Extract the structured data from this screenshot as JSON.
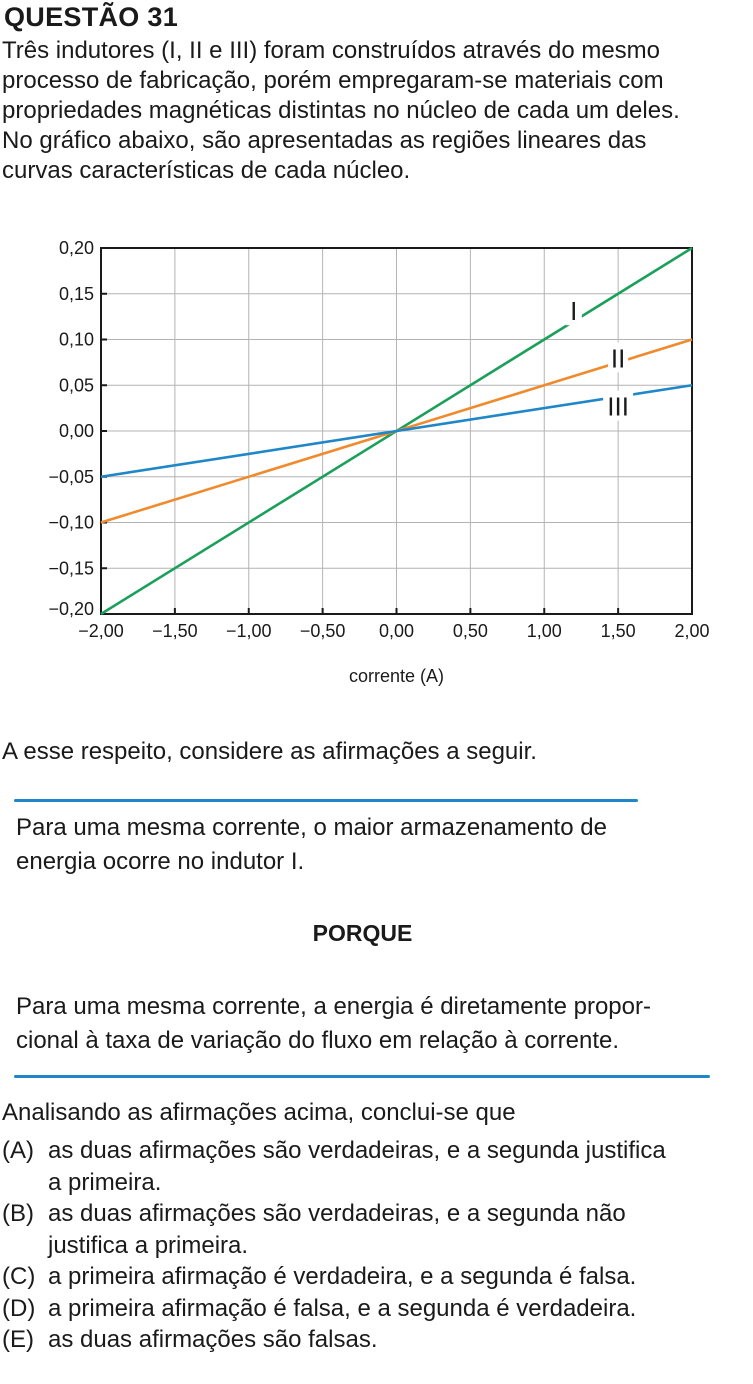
{
  "question": {
    "title": "QUESTÃO 31",
    "intro_lines": [
      "Três indutores (I, II e III) foram construídos através do mesmo",
      "processo de fabricação, porém empregaram-se materiais com",
      "propriedades magnéticas distintas no núcleo de cada um deles.",
      "No gráfico abaixo, são apresentadas as regiões lineares das",
      "curvas características de cada núcleo."
    ],
    "prompt": "A esse respeito, considere as afirmações a seguir.",
    "statement1_lines": [
      "Para uma mesma corrente, o maior armazenamento de",
      "energia ocorre no indutor I."
    ],
    "connector": "PORQUE",
    "statement2_lines": [
      "Para uma mesma corrente, a energia é diretamente propor-",
      "cional à taxa de variação do fluxo em relação à corrente."
    ],
    "conclusion": "Analisando as afirmações acima, conclui-se que",
    "options": [
      {
        "letter": "(A)",
        "lines": [
          "as duas afirmações são verdadeiras, e a segunda justifica",
          "a primeira."
        ]
      },
      {
        "letter": "(B)",
        "lines": [
          "as duas afirmações são verdadeiras, e a segunda não",
          "justifica a primeira."
        ]
      },
      {
        "letter": "(C)",
        "lines": [
          "a primeira afirmação é verdadeira, e a segunda é falsa."
        ]
      },
      {
        "letter": "(D)",
        "lines": [
          "a primeira afirmação é falsa, e a segunda é verdadeira."
        ]
      },
      {
        "letter": "(E)",
        "lines": [
          "as duas afirmações são falsas."
        ]
      }
    ]
  },
  "colors": {
    "line_I": "#1aa05a",
    "line_II": "#f08a2c",
    "line_III": "#1f87c8",
    "grid": "#b4b4b4",
    "axis": "#1a1a1a",
    "box_rule": "#1f87c8"
  },
  "chart_data": {
    "type": "line",
    "title": "",
    "xlabel": "corrente (A)",
    "ylabel": "",
    "xlim": [
      -2.0,
      2.0
    ],
    "ylim": [
      -0.2,
      0.2
    ],
    "x_ticks": [
      "−2,00",
      "−1,50",
      "−1,00",
      "−0,50",
      "0,00",
      "0,50",
      "1,00",
      "1,50",
      "2,00"
    ],
    "y_ticks": [
      "0,20",
      "0,15",
      "0,10",
      "0,05",
      "0,00",
      "−0,05",
      "−0,10",
      "−0,15",
      "−0,20"
    ],
    "grid": true,
    "series": [
      {
        "name": "I",
        "x": [
          -2.0,
          2.0
        ],
        "y": [
          -0.2,
          0.2
        ]
      },
      {
        "name": "II",
        "x": [
          -2.0,
          2.0
        ],
        "y": [
          -0.1,
          0.1
        ]
      },
      {
        "name": "III",
        "x": [
          -2.0,
          2.0
        ],
        "y": [
          -0.05,
          0.05
        ]
      }
    ]
  }
}
